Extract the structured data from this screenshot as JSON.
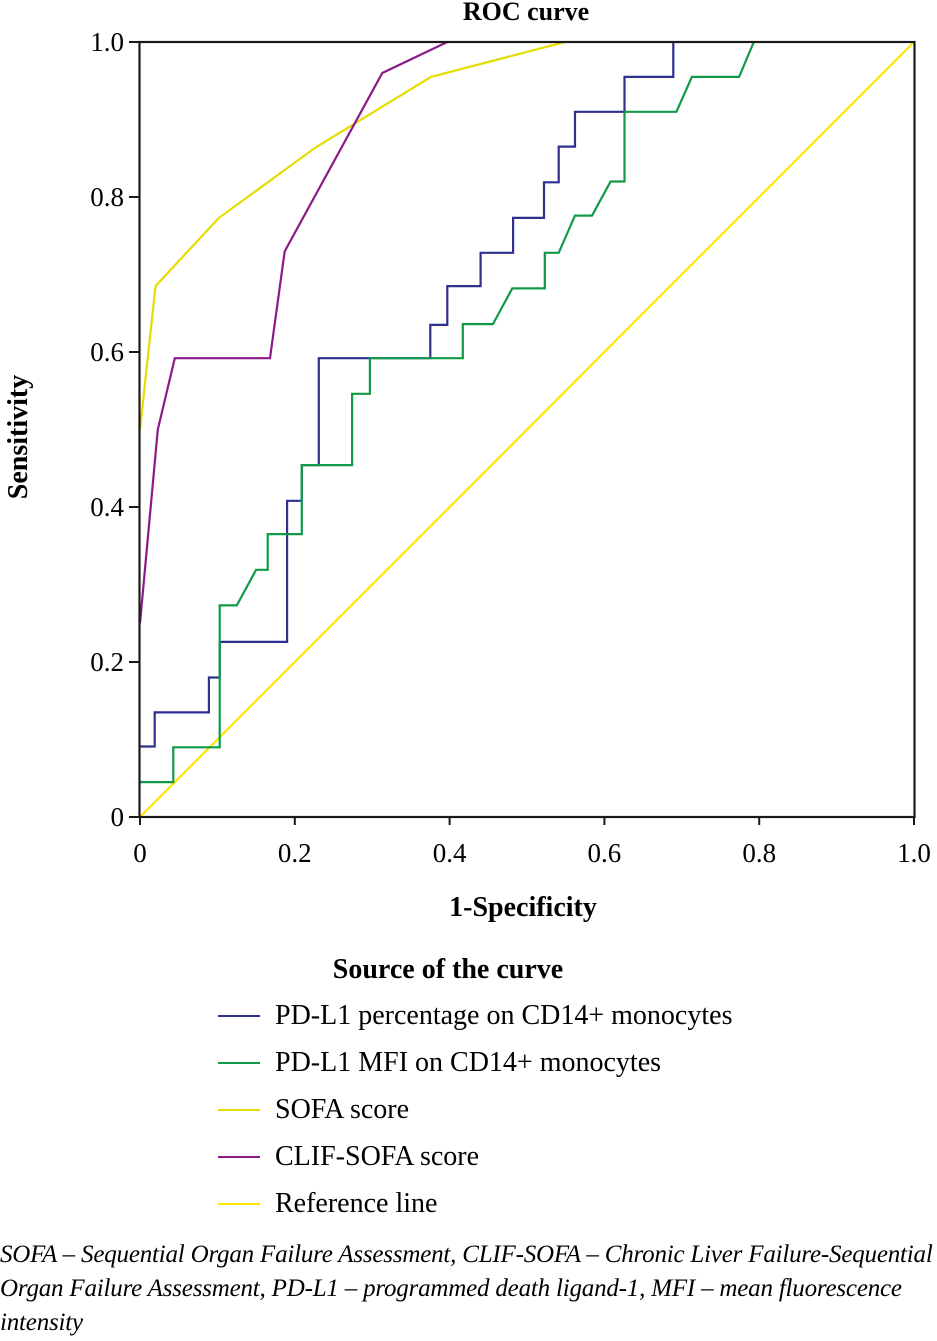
{
  "chart_data": {
    "type": "line",
    "title": "ROC curve",
    "xlabel": "1-Specificity",
    "ylabel": "Sensitivity",
    "xlim": [
      0,
      1.0
    ],
    "ylim": [
      0,
      1.0
    ],
    "xticks": [
      0,
      0.2,
      0.4,
      0.6,
      0.8,
      1.0
    ],
    "xtick_labels": [
      "0",
      "0.2",
      "0.4",
      "0.6",
      "0.8",
      "1.0"
    ],
    "yticks": [
      0,
      0.2,
      0.4,
      0.6,
      0.8,
      1.0
    ],
    "ytick_labels": [
      "0",
      "0.2",
      "0.4",
      "0.6",
      "0.8",
      "1.0"
    ],
    "grid": false,
    "legend_position": "below",
    "legend_title": "Source of the curve",
    "series": [
      {
        "name": "PD-L1 percentage on CD14+ monocytes",
        "color": "#2e2f8f",
        "x": [
          0,
          0.019,
          0.019,
          0.089,
          0.089,
          0.103,
          0.103,
          0.19,
          0.19,
          0.209,
          0.209,
          0.231,
          0.231,
          0.375,
          0.375,
          0.397,
          0.397,
          0.44,
          0.44,
          0.482,
          0.482,
          0.522,
          0.522,
          0.541,
          0.541,
          0.562,
          0.562,
          0.626,
          0.626,
          0.689,
          0.689
        ],
        "y": [
          0.091,
          0.091,
          0.135,
          0.135,
          0.18,
          0.18,
          0.226,
          0.226,
          0.408,
          0.408,
          0.454,
          0.454,
          0.592,
          0.592,
          0.635,
          0.635,
          0.685,
          0.685,
          0.728,
          0.728,
          0.773,
          0.773,
          0.819,
          0.819,
          0.865,
          0.865,
          0.91,
          0.91,
          0.955,
          0.955,
          1.0
        ]
      },
      {
        "name": "PD-L1 MFI on CD14+ monocytes",
        "color": "#109a48",
        "x": [
          0,
          0.043,
          0.043,
          0.103,
          0.103,
          0.125,
          0.15,
          0.165,
          0.165,
          0.209,
          0.209,
          0.274,
          0.274,
          0.297,
          0.297,
          0.417,
          0.417,
          0.456,
          0.481,
          0.523,
          0.523,
          0.541,
          0.562,
          0.584,
          0.608,
          0.626,
          0.626,
          0.693,
          0.713,
          0.774,
          0.793
        ],
        "y": [
          0.045,
          0.045,
          0.09,
          0.09,
          0.273,
          0.273,
          0.319,
          0.319,
          0.365,
          0.365,
          0.454,
          0.454,
          0.546,
          0.546,
          0.592,
          0.592,
          0.636,
          0.636,
          0.682,
          0.682,
          0.728,
          0.728,
          0.776,
          0.776,
          0.82,
          0.82,
          0.91,
          0.91,
          0.955,
          0.955,
          1.0
        ]
      },
      {
        "name": "SOFA score",
        "color": "#e6dc00",
        "x": [
          0,
          0.02,
          0.102,
          0.227,
          0.376,
          0.549
        ],
        "y": [
          0.5,
          0.685,
          0.773,
          0.864,
          0.955,
          1.0
        ]
      },
      {
        "name": "CLIF-SOFA score",
        "color": "#8b1a88",
        "x": [
          0,
          0.023,
          0.045,
          0.168,
          0.187,
          0.313,
          0.397
        ],
        "y": [
          0.25,
          0.5,
          0.592,
          0.592,
          0.73,
          0.96,
          1.0
        ]
      },
      {
        "name": "Reference line",
        "color": "#ffe600",
        "x": [
          0,
          1.0
        ],
        "y": [
          0,
          1.0
        ]
      }
    ]
  },
  "caption": "SOFA – Sequential Organ Failure Assessment, CLIF-SOFA – Chronic Liver Failure-Sequential Organ Failure Assessment, PD-L1 – programmed death ligand-1, MFI – mean fluorescence intensity"
}
